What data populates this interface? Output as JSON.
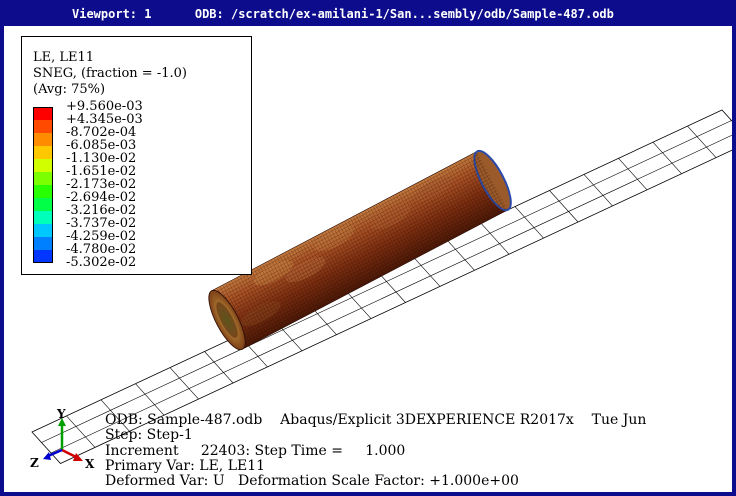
{
  "titlebar": {
    "viewport_label": "Viewport: 1",
    "odb_path": "ODB: /scratch/ex-amilani-1/San...sembly/odb/Sample-487.odb"
  },
  "legend": {
    "line1": "LE, LE11",
    "line2": "SNEG, (fraction = -1.0)",
    "line3": "(Avg: 75%)",
    "ticks": [
      "+9.560e-03",
      "+4.345e-03",
      "-8.702e-04",
      "-6.085e-03",
      "-1.130e-02",
      "-1.651e-02",
      "-2.173e-02",
      "-2.694e-02",
      "-3.216e-02",
      "-3.737e-02",
      "-4.259e-02",
      "-4.780e-02",
      "-5.302e-02"
    ],
    "colors": [
      "#ff0000",
      "#ff4a00",
      "#ff8c00",
      "#ffc800",
      "#d2ff00",
      "#7cff00",
      "#28ff00",
      "#00ff46",
      "#00ffb8",
      "#00c8ff",
      "#0080ff",
      "#0036ff"
    ]
  },
  "info": {
    "line1": "ODB: Sample-487.odb    Abaqus/Explicit 3DEXPERIENCE R2017x    Tue Jun",
    "line2": "Step: Step-1",
    "line3": "Increment     22403: Step Time =     1.000",
    "line4": "Primary Var: LE, LE11",
    "line5": "Deformed Var: U   Deformation Scale Factor: +1.000e+00"
  },
  "triad": {
    "x_label": "X",
    "y_label": "Y",
    "z_label": "Z",
    "x_color": "#d00000",
    "y_color": "#00a000",
    "z_color": "#0000d0"
  }
}
